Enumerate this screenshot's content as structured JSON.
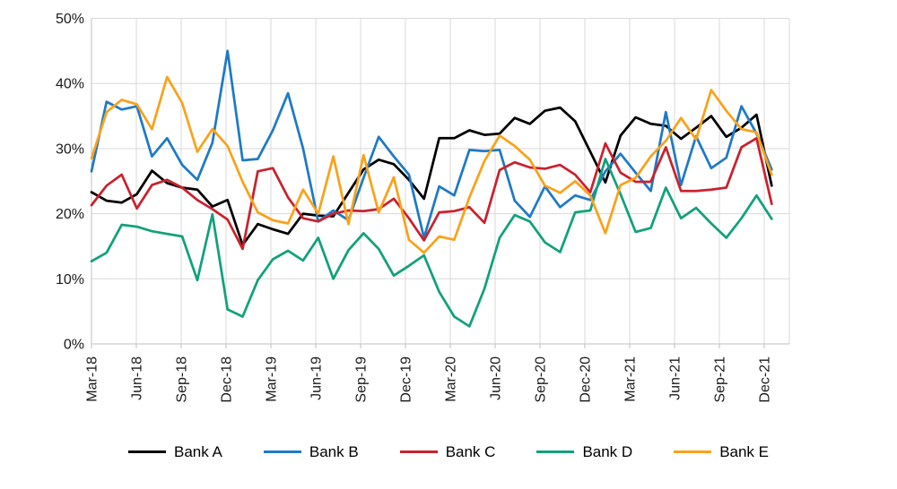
{
  "chart_data": {
    "type": "line",
    "title": "",
    "x_axis": {
      "categories": [
        "Mar-18",
        "Apr-18",
        "May-18",
        "Jun-18",
        "Jul-18",
        "Aug-18",
        "Sep-18",
        "Oct-18",
        "Nov-18",
        "Dec-18",
        "Jan-19",
        "Feb-19",
        "Mar-19",
        "Apr-19",
        "May-19",
        "Jun-19",
        "Jul-19",
        "Aug-19",
        "Sep-19",
        "Oct-19",
        "Nov-19",
        "Dec-19",
        "Jan-20",
        "Feb-20",
        "Mar-20",
        "Apr-20",
        "May-20",
        "Jun-20",
        "Jul-20",
        "Aug-20",
        "Sep-20",
        "Oct-20",
        "Nov-20",
        "Dec-20",
        "Jan-21",
        "Feb-21",
        "Mar-21",
        "Apr-21",
        "May-21",
        "Jun-21",
        "Jul-21",
        "Aug-21",
        "Sep-21",
        "Oct-21",
        "Nov-21",
        "Dec-21"
      ],
      "visible_tick_labels": [
        "Mar-18",
        "Jun-18",
        "Sep-18",
        "Dec-18",
        "Mar-19",
        "Jun-19",
        "Sep-19",
        "Dec-19",
        "Mar-20",
        "Jun-20",
        "Sep-20",
        "Dec-20",
        "Mar-21",
        "Jun-21",
        "Sep-21",
        "Dec-21"
      ],
      "tick_every": 3,
      "label_rotation_deg": 90
    },
    "y_axis": {
      "tick_labels": [
        "0%",
        "10%",
        "20%",
        "30%",
        "40%",
        "50%"
      ],
      "min": 0,
      "max": 50,
      "step": 10,
      "format": "percent"
    },
    "grid": true,
    "legend_position": "bottom",
    "series": [
      {
        "name": "Bank A",
        "color": "#000000",
        "values": [
          23.3,
          22.0,
          21.7,
          23.0,
          26.6,
          24.7,
          24.0,
          23.7,
          21.1,
          22.1,
          15.2,
          18.4,
          17.6,
          16.9,
          20.0,
          19.7,
          19.6,
          23.2,
          26.8,
          28.3,
          27.6,
          25.2,
          22.3,
          31.6,
          31.6,
          32.8,
          32.1,
          32.3,
          34.7,
          33.8,
          35.8,
          36.3,
          34.2,
          29.5,
          24.8,
          32.0,
          34.8,
          33.8,
          33.5,
          31.5,
          33.2,
          35.0,
          31.8,
          33.2,
          35.2,
          24.3
        ]
      },
      {
        "name": "Bank B",
        "color": "#1F7AC5",
        "values": [
          26.5,
          37.2,
          36.0,
          36.5,
          28.8,
          31.6,
          27.5,
          25.2,
          30.9,
          45.0,
          28.2,
          28.4,
          32.8,
          38.5,
          30.0,
          18.8,
          20.5,
          19.0,
          25.5,
          31.8,
          28.8,
          26.0,
          16.3,
          24.2,
          22.8,
          29.8,
          29.6,
          29.8,
          22.0,
          19.5,
          24.2,
          21.0,
          22.8,
          22.1,
          26.5,
          29.2,
          26.3,
          23.5,
          35.6,
          24.4,
          31.9,
          27.0,
          28.6,
          36.5,
          32.3,
          26.8
        ]
      },
      {
        "name": "Bank C",
        "color": "#C9222E",
        "values": [
          21.3,
          24.3,
          26.0,
          20.8,
          24.4,
          25.2,
          24.0,
          22.1,
          20.7,
          19.1,
          14.6,
          26.5,
          27.0,
          22.5,
          19.3,
          18.8,
          20.0,
          20.5,
          20.4,
          20.7,
          22.3,
          19.3,
          15.9,
          20.2,
          20.4,
          21.0,
          18.6,
          26.7,
          27.9,
          27.1,
          26.9,
          27.5,
          26.0,
          23.3,
          30.8,
          26.3,
          24.9,
          24.9,
          30.2,
          23.5,
          23.5,
          23.7,
          24.0,
          30.2,
          31.6,
          21.5
        ]
      },
      {
        "name": "Bank D",
        "color": "#12A17C",
        "values": [
          12.7,
          14.0,
          18.3,
          18.0,
          17.3,
          16.9,
          16.5,
          9.8,
          19.9,
          5.3,
          4.2,
          9.8,
          13.0,
          14.3,
          12.8,
          16.3,
          10.0,
          14.4,
          17.0,
          14.6,
          10.5,
          12.0,
          13.6,
          8.0,
          4.2,
          2.7,
          8.5,
          16.3,
          19.8,
          18.8,
          15.6,
          14.1,
          20.2,
          20.5,
          28.4,
          23.0,
          17.2,
          17.8,
          24.0,
          19.3,
          20.9,
          18.5,
          16.3,
          19.3,
          22.8,
          19.2
        ]
      },
      {
        "name": "Bank E",
        "color": "#F9A21B",
        "values": [
          28.5,
          35.6,
          37.5,
          36.8,
          33.0,
          41.0,
          37.0,
          29.5,
          33.0,
          30.4,
          24.9,
          20.2,
          19.0,
          18.5,
          23.7,
          20.0,
          28.8,
          18.4,
          29.0,
          20.2,
          25.6,
          16.0,
          14.0,
          16.5,
          16.0,
          22.5,
          28.1,
          32.0,
          30.4,
          28.3,
          24.3,
          23.2,
          25.0,
          22.8,
          17.0,
          24.4,
          25.5,
          28.8,
          31.2,
          34.7,
          31.4,
          39.0,
          35.8,
          33.0,
          32.5,
          26.0
        ]
      }
    ],
    "style": {
      "gridline_color": "#D9D9D9",
      "axis_line_color": "#BFBFBF",
      "tick_text_color": "#1a1a1a",
      "line_width": 2.75,
      "background": "#FFFFFF"
    }
  }
}
